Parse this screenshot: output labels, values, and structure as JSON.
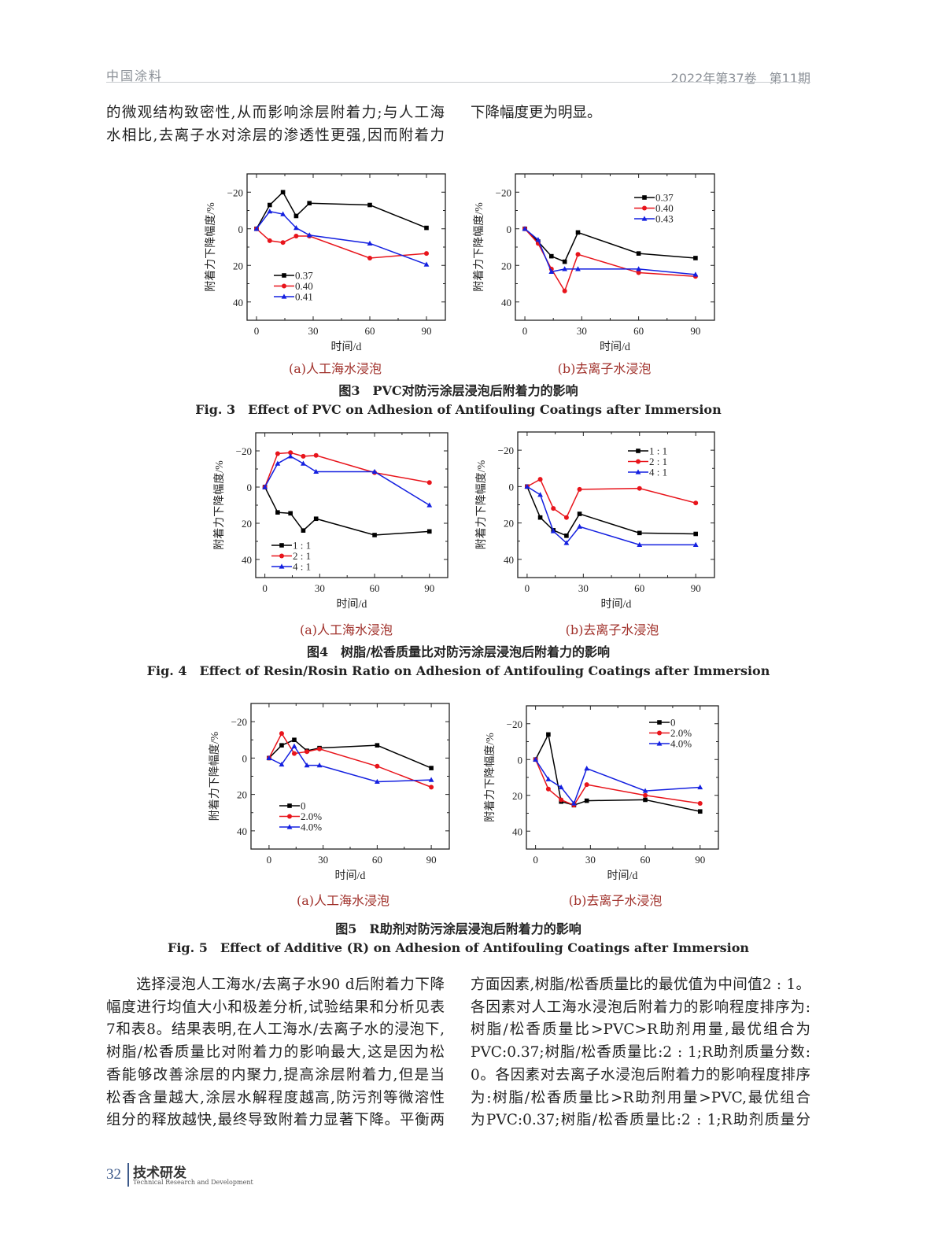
{
  "header": {
    "journal": "中国涂料",
    "issue": "2022年第37卷　第11期"
  },
  "top_text": {
    "col1": [
      "的微观结构致密性,从而影响涂层附着力;与人工海",
      "水相比,去离子水对涂层的渗透性更强,因而附着力"
    ],
    "col2": [
      "下降幅度更为明显。"
    ]
  },
  "figures": [
    {
      "caption_cn": "图3　PVC对防污涂层浸泡后附着力的影响",
      "caption_en": "Fig. 3　Effect of PVC on Adhesion of Antifouling Coatings after Immersion"
    },
    {
      "caption_cn": "图4　树脂/松香质量比对防污涂层浸泡后附着力的影响",
      "caption_en": "Fig. 4　Effect of Resin/Rosin Ratio on Adhesion of Antifouling Coatings after Immersion"
    },
    {
      "caption_cn": "图5　R助剂对防污涂层浸泡后附着力的影响",
      "caption_en": "Fig. 5　Effect of Additive (R) on Adhesion of Antifouling Coatings after Immersion"
    }
  ],
  "chart_data": [
    {
      "type": "line",
      "subcaption": "(a)人工海水浸泡",
      "xlabel": "时间/d",
      "ylabel": "附着力下降幅度/%",
      "x": [
        0,
        7,
        14,
        21,
        28,
        60,
        90
      ],
      "xlim": [
        -5,
        100
      ],
      "ylim": [
        -30,
        50
      ],
      "y_inverted": true,
      "xticks": [
        "0",
        "30",
        "60",
        "90"
      ],
      "yticks": [
        "−20",
        "0",
        "20",
        "40"
      ],
      "legend": "bottom-left",
      "series": [
        {
          "name": "0.37",
          "color": "#000000",
          "marker": "square",
          "values": [
            0,
            -13,
            -20,
            -7,
            -14,
            -13,
            -0.5
          ]
        },
        {
          "name": "0.40",
          "color": "#e8141b",
          "marker": "circle",
          "values": [
            0,
            6.5,
            7.5,
            4,
            4,
            16,
            13.5
          ]
        },
        {
          "name": "0.41",
          "color": "#1420e0",
          "marker": "triangle",
          "values": [
            0,
            -9.5,
            -8,
            -0.5,
            3.5,
            8,
            19.5
          ]
        }
      ]
    },
    {
      "type": "line",
      "subcaption": "(b)去离子水浸泡",
      "xlabel": "时间/d",
      "ylabel": "附着力下降幅度/%",
      "x": [
        0,
        7,
        14,
        21,
        28,
        60,
        90
      ],
      "xlim": [
        -5,
        100
      ],
      "ylim": [
        -30,
        50
      ],
      "y_inverted": true,
      "xticks": [
        "0",
        "30",
        "60",
        "90"
      ],
      "yticks": [
        "−20",
        "0",
        "20",
        "40"
      ],
      "legend": "top-right",
      "series": [
        {
          "name": "0.37",
          "color": "#000000",
          "marker": "square",
          "values": [
            0,
            7,
            15,
            18,
            2,
            13.5,
            16
          ]
        },
        {
          "name": "0.40",
          "color": "#e8141b",
          "marker": "circle",
          "values": [
            0,
            8,
            22,
            34,
            14,
            24,
            26
          ]
        },
        {
          "name": "0.43",
          "color": "#1420e0",
          "marker": "triangle",
          "values": [
            0,
            6,
            23.5,
            22,
            22,
            22,
            25
          ]
        }
      ]
    },
    {
      "type": "line",
      "subcaption": "(a)人工海水浸泡",
      "xlabel": "时间/d",
      "ylabel": "附着力下降幅度/%",
      "x": [
        0,
        7,
        14,
        21,
        28,
        60,
        90
      ],
      "xlim": [
        -5,
        100
      ],
      "ylim": [
        -30,
        50
      ],
      "y_inverted": true,
      "xticks": [
        "0",
        "30",
        "60",
        "90"
      ],
      "yticks": [
        "−20",
        "0",
        "20",
        "40"
      ],
      "legend": "bottom-left",
      "series": [
        {
          "name": "1 : 1",
          "color": "#000000",
          "marker": "square",
          "values": [
            0,
            14,
            14.5,
            24,
            17.5,
            26.5,
            24.5
          ]
        },
        {
          "name": "2 : 1",
          "color": "#e8141b",
          "marker": "circle",
          "values": [
            0,
            -18.5,
            -19,
            -17,
            -17.5,
            -8,
            -2.5
          ]
        },
        {
          "name": "4 : 1",
          "color": "#1420e0",
          "marker": "triangle",
          "values": [
            0,
            -13,
            -17,
            -13,
            -8.5,
            -8.5,
            10
          ]
        }
      ]
    },
    {
      "type": "line",
      "subcaption": "(b)去离子水浸泡",
      "xlabel": "时间/d",
      "ylabel": "附着力下降幅度/%",
      "x": [
        0,
        7,
        14,
        21,
        28,
        60,
        90
      ],
      "xlim": [
        -5,
        100
      ],
      "ylim": [
        -30,
        50
      ],
      "y_inverted": true,
      "xticks": [
        "0",
        "30",
        "60",
        "90"
      ],
      "yticks": [
        "−20",
        "0",
        "20",
        "40"
      ],
      "legend": "top-right",
      "series": [
        {
          "name": "1 : 1",
          "color": "#000000",
          "marker": "square",
          "values": [
            0,
            17,
            24,
            27,
            15,
            25.5,
            26
          ]
        },
        {
          "name": "2 : 1",
          "color": "#e8141b",
          "marker": "circle",
          "values": [
            0,
            -4,
            12,
            17,
            1.5,
            1,
            9
          ]
        },
        {
          "name": "4 : 1",
          "color": "#1420e0",
          "marker": "triangle",
          "values": [
            0,
            4.5,
            24.5,
            31,
            22,
            32,
            32
          ]
        }
      ]
    },
    {
      "type": "line",
      "subcaption": "(a)人工海水浸泡",
      "xlabel": "时间/d",
      "ylabel": "附着力下降幅度/%",
      "x": [
        0,
        7,
        14,
        21,
        28,
        60,
        90
      ],
      "xlim": [
        -10,
        100
      ],
      "ylim": [
        -30,
        50
      ],
      "y_inverted": true,
      "xticks": [
        "0",
        "30",
        "60",
        "90"
      ],
      "yticks": [
        "−20",
        "0",
        "20",
        "40"
      ],
      "legend": "bottom-left",
      "series": [
        {
          "name": "0",
          "color": "#000000",
          "marker": "square",
          "values": [
            0,
            -7,
            -10,
            -4,
            -5.5,
            -7,
            5.5
          ]
        },
        {
          "name": "2.0%",
          "color": "#e8141b",
          "marker": "circle",
          "values": [
            0,
            -13.5,
            -2.5,
            -3.5,
            -5,
            4.5,
            16
          ]
        },
        {
          "name": "4.0%",
          "color": "#1420e0",
          "marker": "triangle",
          "values": [
            0,
            3.5,
            -6.5,
            4,
            4,
            13,
            12
          ]
        }
      ]
    },
    {
      "type": "line",
      "subcaption": "(b)去离子水浸泡",
      "xlabel": "时间/d",
      "ylabel": "附着力下降幅度/%",
      "x": [
        0,
        7,
        14,
        21,
        28,
        60,
        90
      ],
      "xlim": [
        -5,
        100
      ],
      "ylim": [
        -30,
        50
      ],
      "y_inverted": true,
      "xticks": [
        "0",
        "30",
        "60",
        "90"
      ],
      "yticks": [
        "−20",
        "0",
        "20",
        "40"
      ],
      "legend": "top-right",
      "series": [
        {
          "name": "0",
          "color": "#000000",
          "marker": "square",
          "values": [
            0,
            -14,
            23.5,
            25.5,
            23,
            22.5,
            29
          ]
        },
        {
          "name": "2.0%",
          "color": "#e8141b",
          "marker": "circle",
          "values": [
            0,
            16.5,
            22.5,
            25.5,
            14,
            20,
            24.5
          ]
        },
        {
          "name": "4.0%",
          "color": "#1420e0",
          "marker": "triangle",
          "values": [
            0,
            11,
            15.5,
            24.5,
            5,
            17.5,
            15.5
          ]
        }
      ]
    }
  ],
  "bottom_text": {
    "col1": [
      "　　选择浸泡人工海水/去离子水90 d后附着力下降",
      "幅度进行均值大小和极差分析,试验结果和分析见表",
      "7和表8。结果表明,在人工海水/去离子水的浸泡下,",
      "树脂/松香质量比对附着力的影响最大,这是因为松",
      "香能够改善涂层的内聚力,提高涂层附着力,但是当",
      "松香含量越大,涂层水解程度越高,防污剂等微溶性",
      "组分的释放越快,最终导致附着力显著下降。平衡两"
    ],
    "col2": [
      "方面因素,树脂/松香质量比的最优值为中间值2 : 1。",
      "各因素对人工海水浸泡后附着力的影响程度排序为:",
      "树脂/松香质量比>PVC>R助剂用量,最优组合为",
      "PVC:0.37;树脂/松香质量比:2 : 1;R助剂质量分数:",
      "0。各因素对去离子水浸泡后附着力的影响程度排序",
      "为:树脂/松香质量比>R助剂用量>PVC,最优组合",
      "为PVC:0.37;树脂/松香质量比:2 : 1;R助剂质量分"
    ]
  },
  "footer": {
    "page": "32",
    "section": "技术研发",
    "section_en": "Technical Research and Development"
  }
}
